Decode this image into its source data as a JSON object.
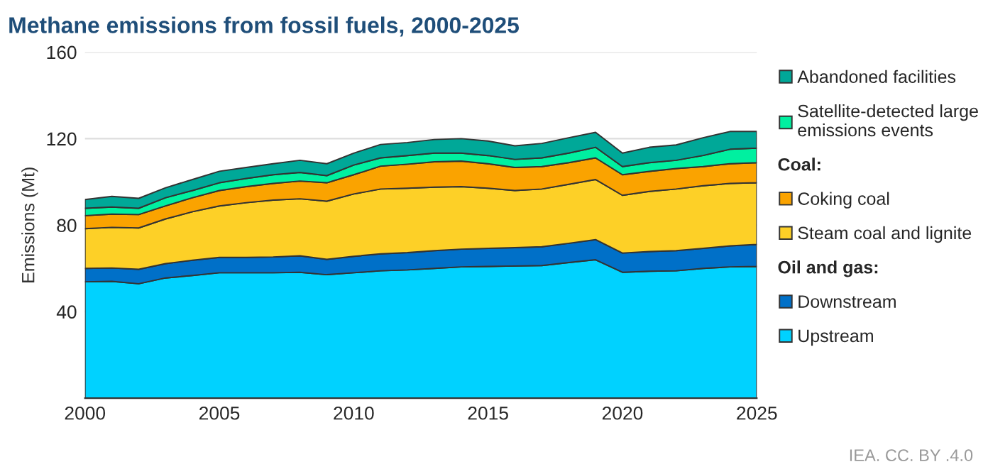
{
  "chart_data": {
    "type": "area",
    "stacked": true,
    "title": "Methane emissions from fossil fuels, 2000-2025",
    "ylabel": "Emissions (Mt)",
    "x": [
      2000,
      2001,
      2002,
      2003,
      2004,
      2005,
      2006,
      2007,
      2008,
      2009,
      2010,
      2011,
      2012,
      2013,
      2014,
      2015,
      2016,
      2017,
      2018,
      2019,
      2020,
      2021,
      2022,
      2023,
      2024,
      2025
    ],
    "series": [
      {
        "name": "Upstream",
        "color": "#00d2ff",
        "values": [
          53.8,
          54.0,
          52.9,
          55.6,
          56.7,
          58.0,
          58.0,
          58.0,
          58.2,
          57.1,
          58.0,
          58.9,
          59.3,
          60.0,
          60.7,
          60.9,
          61.1,
          61.3,
          62.7,
          64.0,
          58.2,
          58.7,
          58.9,
          60.0,
          60.7,
          60.9
        ]
      },
      {
        "name": "Downstream",
        "color": "#0070c8",
        "values": [
          6.2,
          6.2,
          6.7,
          6.6,
          7.1,
          7.1,
          7.1,
          7.3,
          7.6,
          7.1,
          7.6,
          7.8,
          8.0,
          8.2,
          8.2,
          8.4,
          8.5,
          8.7,
          8.9,
          9.3,
          8.9,
          9.1,
          9.3,
          9.3,
          9.7,
          10.2
        ]
      },
      {
        "name": "Steam coal and lignite",
        "color": "#fdd027",
        "values": [
          18.4,
          18.8,
          19.1,
          20.7,
          22.4,
          23.8,
          25.3,
          26.3,
          26.4,
          26.9,
          28.8,
          30.0,
          29.8,
          29.4,
          28.9,
          27.8,
          26.4,
          26.7,
          27.3,
          27.8,
          26.7,
          27.8,
          28.5,
          28.9,
          28.9,
          28.5
        ]
      },
      {
        "name": "Coking coal",
        "color": "#faa300",
        "values": [
          6.0,
          6.1,
          6.2,
          6.0,
          6.5,
          7.1,
          7.4,
          7.7,
          8.2,
          8.5,
          8.9,
          10.6,
          11.1,
          11.7,
          11.8,
          11.3,
          10.7,
          10.4,
          10.0,
          10.0,
          9.5,
          9.3,
          9.5,
          8.9,
          9.1,
          9.3
        ]
      },
      {
        "name": "Satellite-detected large emissions events",
        "color": "#00f0a0",
        "values": [
          3.4,
          3.3,
          2.9,
          3.8,
          3.3,
          3.6,
          3.8,
          4.0,
          4.0,
          3.3,
          4.5,
          3.8,
          4.0,
          4.0,
          3.7,
          3.8,
          3.7,
          4.0,
          4.4,
          4.9,
          3.8,
          4.0,
          3.8,
          5.1,
          6.7,
          6.7
        ]
      },
      {
        "name": "Abandoned facilities",
        "color": "#00a898",
        "values": [
          4.0,
          4.9,
          4.6,
          4.6,
          5.1,
          5.3,
          5.1,
          5.1,
          5.6,
          5.5,
          5.5,
          6.2,
          6.0,
          6.3,
          6.7,
          6.7,
          6.3,
          6.7,
          7.1,
          6.9,
          6.2,
          7.1,
          7.1,
          8.2,
          8.2,
          7.7
        ]
      }
    ],
    "xlim": [
      2000,
      2025
    ],
    "xticks": [
      2000,
      2005,
      2010,
      2015,
      2020,
      2025
    ],
    "ylim": [
      0,
      160
    ],
    "yticks": [
      40,
      80,
      120,
      160
    ],
    "grid": "y",
    "legend": "right",
    "annotations": [
      "Coal:",
      "Oil and gas:",
      "IEA. CC. BY .4.0"
    ]
  }
}
